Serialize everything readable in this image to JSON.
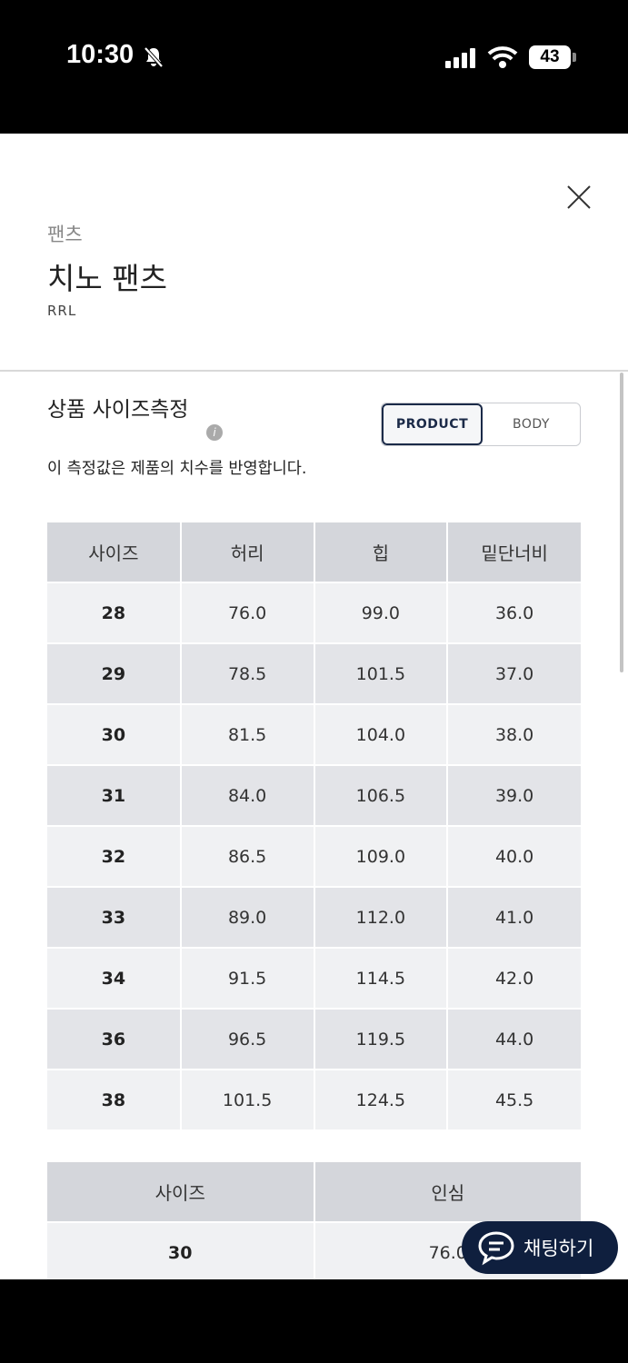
{
  "status_bar": {
    "time": "10:30",
    "battery": "43"
  },
  "header": {
    "category": "팬츠",
    "title": "치노 팬츠",
    "brand": "RRL"
  },
  "section": {
    "title": "상품 사이즈측정",
    "toggle": [
      "PRODUCT",
      "BODY"
    ],
    "description": "이 측정값은 제품의 치수를 반영합니다."
  },
  "table": {
    "headers": [
      "사이즈",
      "허리",
      "힙",
      "밑단너비"
    ],
    "rows": [
      [
        "28",
        "76.0",
        "99.0",
        "36.0"
      ],
      [
        "29",
        "78.5",
        "101.5",
        "37.0"
      ],
      [
        "30",
        "81.5",
        "104.0",
        "38.0"
      ],
      [
        "31",
        "84.0",
        "106.5",
        "39.0"
      ],
      [
        "32",
        "86.5",
        "109.0",
        "40.0"
      ],
      [
        "33",
        "89.0",
        "112.0",
        "41.0"
      ],
      [
        "34",
        "91.5",
        "114.5",
        "42.0"
      ],
      [
        "36",
        "96.5",
        "119.5",
        "44.0"
      ],
      [
        "38",
        "101.5",
        "124.5",
        "45.5"
      ]
    ]
  },
  "table2": {
    "headers": [
      "사이즈",
      "인심"
    ],
    "rows": [
      [
        "30",
        "76.0"
      ]
    ]
  },
  "chat_button": "채팅하기"
}
